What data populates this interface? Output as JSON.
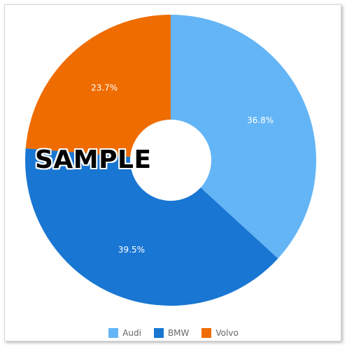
{
  "chart_data": {
    "type": "pie",
    "variant": "donut",
    "categories": [
      "Audi",
      "BMW",
      "Volvo"
    ],
    "values": [
      36.8,
      39.5,
      23.7
    ],
    "value_labels": [
      "36.8%",
      "39.5%",
      "23.7%"
    ],
    "colors": [
      "#64b5f6",
      "#1976d2",
      "#ef6c00"
    ],
    "legend_position": "bottom"
  },
  "watermark": "SAMPLE"
}
